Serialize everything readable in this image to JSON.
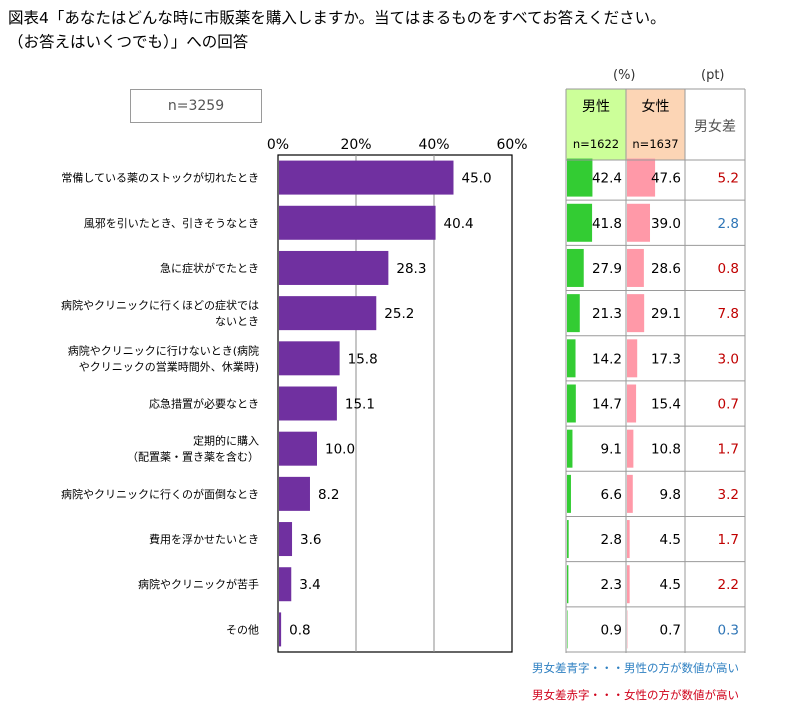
{
  "title": {
    "line1": "図表4「あなたはどんな時に市販薬を購入しますか。当てはまるものをすべてお答えください。",
    "line2": "（お答えはいくつでも）」への回答"
  },
  "sample": "n=3259",
  "units": {
    "percent": "(%)",
    "point": "(pt)"
  },
  "columns": {
    "male": {
      "label": "男性",
      "n": "n=1622"
    },
    "female": {
      "label": "女性",
      "n": "n=1637"
    },
    "diff": {
      "label": "男女差"
    }
  },
  "notes": {
    "blue": "男女差青字・・・男性の方が数値が高い",
    "red": "男女差赤字・・・女性の方が数値が高い"
  },
  "colors": {
    "bar": "#7030a0",
    "male_bar": "#33cc33",
    "female_bar": "#ff99a8",
    "male_header": "#ccff99",
    "female_header": "#fcd5b5",
    "diff_blue": "#2e75b6",
    "diff_red": "#c00000"
  },
  "chart_data": {
    "type": "bar",
    "orientation": "horizontal",
    "xlim": [
      0,
      60
    ],
    "xticks": [
      "0%",
      "20%",
      "40%",
      "60%"
    ],
    "grid": true,
    "categories": [
      [
        "常備している薬のストックが切れたとき"
      ],
      [
        "風邪を引いたとき、引きそうなとき"
      ],
      [
        "急に症状がでたとき"
      ],
      [
        "病院やクリニックに行くほどの症状では",
        "ないとき"
      ],
      [
        "病院やクリニックに行けないとき(病院",
        "やクリニックの営業時間外、休業時)"
      ],
      [
        "応急措置が必要なとき"
      ],
      [
        "定期的に購入",
        "（配置薬・置き薬を含む）"
      ],
      [
        "病院やクリニックに行くのが面倒なとき"
      ],
      [
        "費用を浮かせたいとき"
      ],
      [
        "病院やクリニックが苦手"
      ],
      [
        "その他"
      ]
    ],
    "values": [
      45.0,
      40.4,
      28.3,
      25.2,
      15.8,
      15.1,
      10.0,
      8.2,
      3.6,
      3.4,
      0.8
    ],
    "labels": [
      "45.0",
      "40.4",
      "28.3",
      "25.2",
      "15.8",
      "15.1",
      "10.0",
      "8.2",
      "3.6",
      "3.4",
      "0.8"
    ],
    "male": [
      42.4,
      41.8,
      27.9,
      21.3,
      14.2,
      14.7,
      9.1,
      6.6,
      2.8,
      2.3,
      0.9
    ],
    "male_labels": [
      "42.4",
      "41.8",
      "27.9",
      "21.3",
      "14.2",
      "14.7",
      "9.1",
      "6.6",
      "2.8",
      "2.3",
      "0.9"
    ],
    "female": [
      47.6,
      39.0,
      28.6,
      29.1,
      17.3,
      15.4,
      10.8,
      9.8,
      4.5,
      4.5,
      0.7
    ],
    "female_labels": [
      "47.6",
      "39.0",
      "28.6",
      "29.1",
      "17.3",
      "15.4",
      "10.8",
      "9.8",
      "4.5",
      "4.5",
      "0.7"
    ],
    "diff_labels": [
      "5.2",
      "2.8",
      "0.8",
      "7.8",
      "3.0",
      "0.7",
      "1.7",
      "3.2",
      "1.7",
      "2.2",
      "0.3"
    ],
    "diff_higher": [
      "female",
      "male",
      "female",
      "female",
      "female",
      "female",
      "female",
      "female",
      "female",
      "female",
      "male"
    ]
  }
}
